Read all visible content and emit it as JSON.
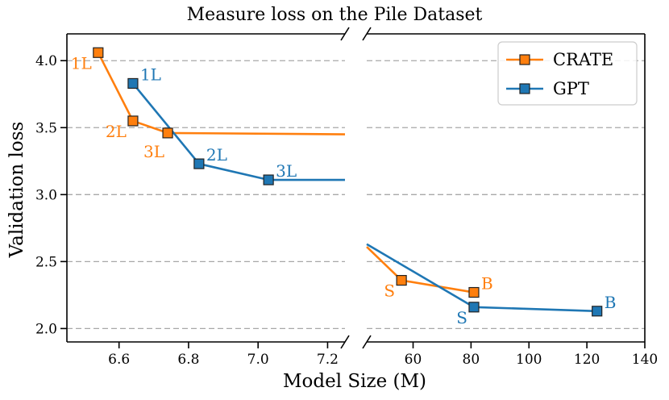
{
  "chart_data": {
    "type": "line",
    "title": "Measure loss on the Pile Dataset",
    "xlabel": "Model Size (M)",
    "ylabel": "Validation loss",
    "ylim": [
      1.9,
      4.2
    ],
    "yticks": [
      2.0,
      2.5,
      3.0,
      3.5,
      4.0
    ],
    "ytick_labels": [
      "2.0",
      "2.5",
      "3.0",
      "3.5",
      "4.0"
    ],
    "grid": "horizontal dashed",
    "broken_x_axis": true,
    "legend_position": "top-right",
    "colors": {
      "CRATE": "#ff7f0e",
      "GPT": "#1f77b4"
    },
    "panels": [
      {
        "name": "left",
        "xlim": [
          6.45,
          7.25
        ],
        "xticks": [
          6.6,
          6.8,
          7.0,
          7.2
        ],
        "xtick_labels": [
          "6.6",
          "6.8",
          "7.0",
          "7.2"
        ]
      },
      {
        "name": "right",
        "xlim": [
          44,
          140
        ],
        "xticks": [
          60,
          80,
          100,
          120,
          140
        ],
        "xtick_labels": [
          "60",
          "80",
          "100",
          "120",
          "140"
        ]
      }
    ],
    "series": [
      {
        "name": "CRATE",
        "color": "#ff7f0e",
        "panels": [
          {
            "points": [
              {
                "x": 6.54,
                "y": 4.06,
                "label": "1L",
                "label_pos": "lower-left"
              },
              {
                "x": 6.64,
                "y": 3.55,
                "label": "2L",
                "label_pos": "lower-left"
              },
              {
                "x": 6.74,
                "y": 3.46,
                "label": "3L",
                "label_pos": "below-left"
              }
            ],
            "extend_to": {
              "x": 7.25,
              "y": 3.45
            }
          },
          {
            "extend_from": {
              "x": 44,
              "y": 2.61
            },
            "points": [
              {
                "x": 56,
                "y": 2.36,
                "label": "S",
                "label_pos": "lower-left"
              },
              {
                "x": 81,
                "y": 2.27,
                "label": "B",
                "label_pos": "upper-right"
              }
            ]
          }
        ]
      },
      {
        "name": "GPT",
        "color": "#1f77b4",
        "panels": [
          {
            "points": [
              {
                "x": 6.64,
                "y": 3.83,
                "label": "1L",
                "label_pos": "upper-right"
              },
              {
                "x": 6.83,
                "y": 3.23,
                "label": "2L",
                "label_pos": "upper-right"
              },
              {
                "x": 7.03,
                "y": 3.11,
                "label": "3L",
                "label_pos": "upper-right"
              }
            ],
            "extend_to": {
              "x": 7.25,
              "y": 3.11
            }
          },
          {
            "extend_from": {
              "x": 44,
              "y": 2.63
            },
            "points": [
              {
                "x": 81,
                "y": 2.16,
                "label": "S",
                "label_pos": "lower-left"
              },
              {
                "x": 123.5,
                "y": 2.13,
                "label": "B",
                "label_pos": "upper-right"
              }
            ]
          }
        ]
      }
    ]
  }
}
